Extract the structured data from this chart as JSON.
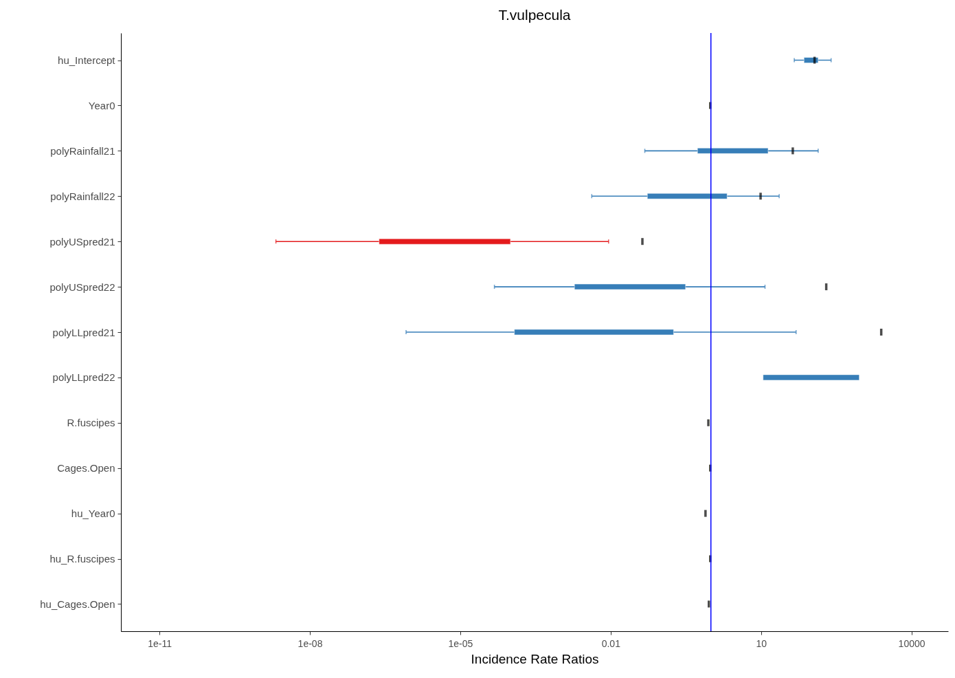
{
  "chart_data": {
    "type": "bar",
    "orientation": "horizontal",
    "title": "T.vulpecula",
    "xlabel": "Incidence Rate Ratios",
    "log": "x",
    "categories": [
      "hu_Intercept",
      "Year0",
      "polyRainfall21",
      "polyRainfall22",
      "polyUSpred21",
      "polyUSpred22",
      "polyLLpred21",
      "polyLLpred22",
      "R.fuscipes",
      "Cages.Open",
      "hu_Year0",
      "hu_R.fuscipes",
      "hu_Cages.Open"
    ],
    "series": [
      {
        "type": "bar",
        "base": [
          72,
          null,
          0.54,
          0.054,
          2.4e-07,
          0.0019,
          0.00012,
          11,
          null,
          null,
          null,
          null,
          null
        ],
        "values": [
          66,
          null,
          13.3,
          2.05,
          0.0001,
          0.31,
          0.18,
          900,
          null,
          null,
          null,
          null,
          null
        ],
        "errors": [
          [
            46,
            250
          ],
          null,
          [
            0.048,
            138
          ],
          [
            0.0042,
            23
          ],
          [
            2.1e-09,
            0.0091
          ],
          [
            4.8e-05,
            12
          ],
          [
            8.3e-07,
            50
          ],
          null,
          null,
          null,
          null,
          null,
          null
        ],
        "colors": [
          "#377eb8",
          "#377eb8",
          "#377eb8",
          "#377eb8",
          "#e41a1c",
          "#377eb8",
          "#377eb8",
          "#377eb8",
          "#377eb8",
          "#377eb8",
          "#377eb8",
          "#377eb8",
          "#377eb8"
        ]
      },
      {
        "type": "scatter",
        "color": "#000000",
        "values": [
          117,
          0.97,
          43,
          9.8,
          0.043,
          200,
          2500,
          null,
          0.89,
          0.97,
          0.78,
          0.97,
          0.91
        ]
      }
    ],
    "xlim": [
      1.7e-12,
      54000
    ],
    "xticks": [
      {
        "value": 1e-11,
        "label": "1e-11"
      },
      {
        "value": 1e-08,
        "label": "1e-08"
      },
      {
        "value": 1e-05,
        "label": "1e-05"
      },
      0.01,
      10,
      10000
    ],
    "ref_lines": [
      {
        "axis": "x",
        "value": 1,
        "color": "#0000ff"
      }
    ],
    "grid": false
  }
}
